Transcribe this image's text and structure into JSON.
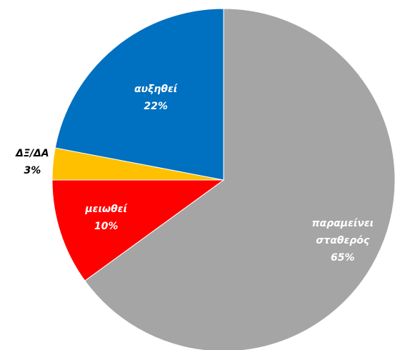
{
  "chart_data": {
    "type": "pie",
    "categories": [
      "παραμείνει σταθερός",
      "μειωθεί",
      "ΔΞ/ΔΑ",
      "αυξηθεί"
    ],
    "values": [
      65,
      10,
      3,
      22
    ],
    "value_labels": [
      "65%",
      "10%",
      "3%",
      "22%"
    ],
    "colors": [
      "#a5a5a5",
      "#ff0000",
      "#ffc000",
      "#0070c0"
    ],
    "start_angle": 0,
    "direction": "clockwise"
  }
}
